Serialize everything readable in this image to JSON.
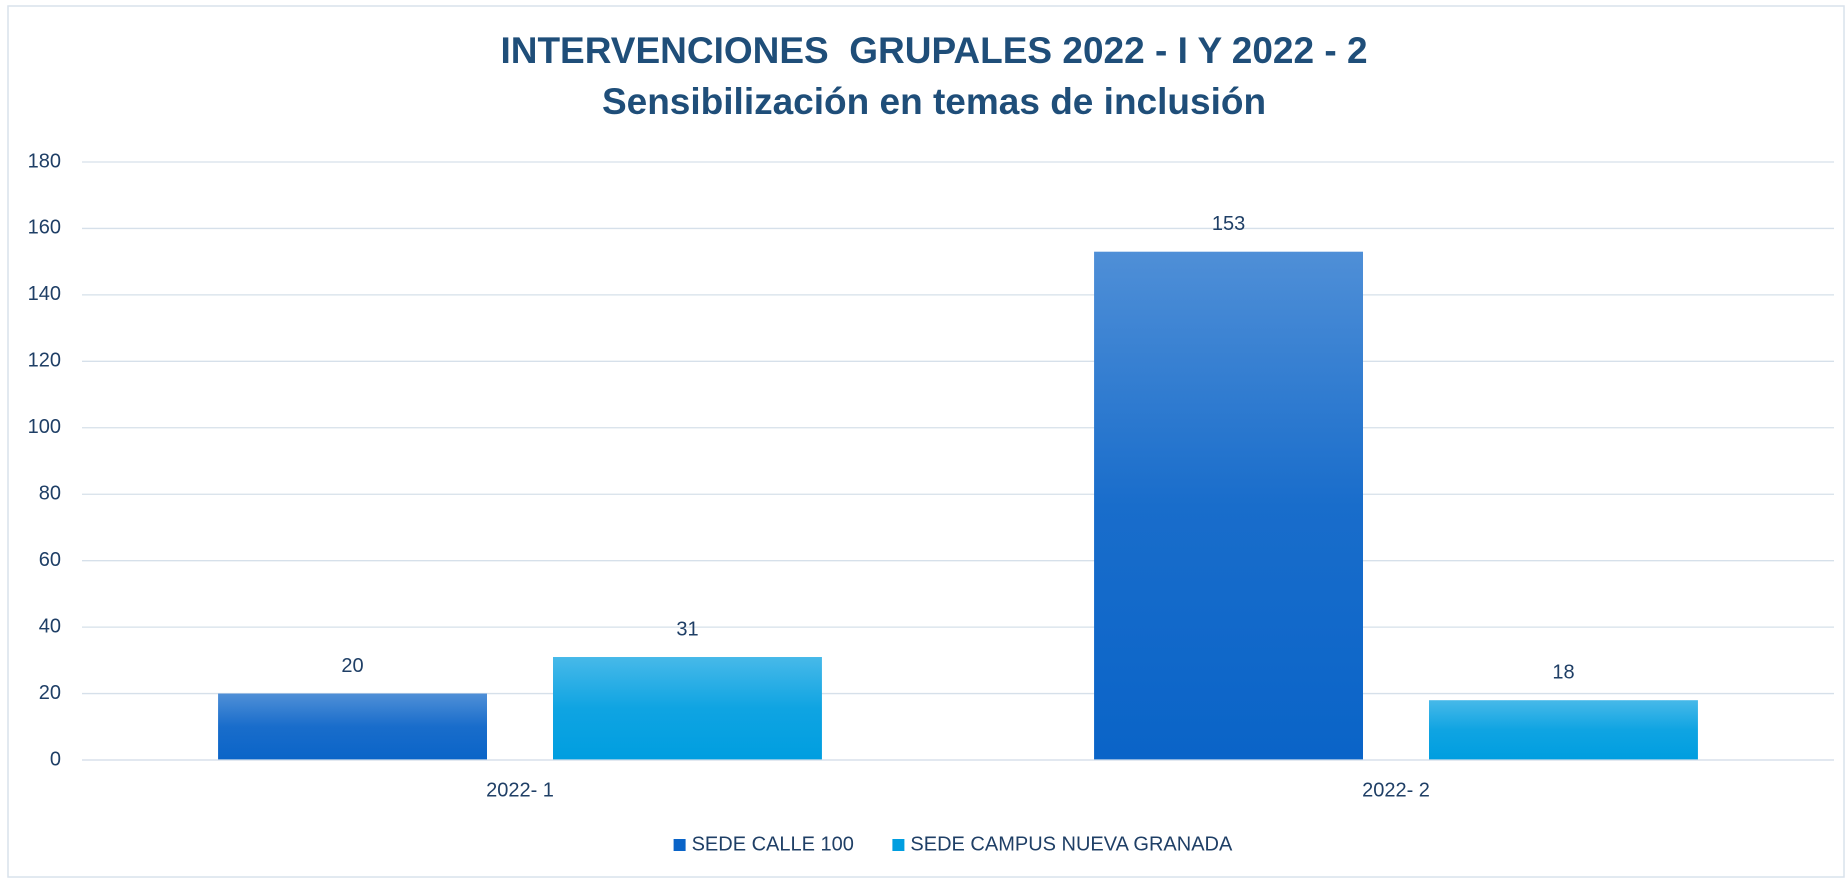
{
  "chart_data": {
    "type": "bar",
    "title": "INTERVENCIONES  GRUPALES 2022 - I Y 2022 - 2",
    "subtitle": "Sensibilización en temas de inclusión",
    "categories": [
      "2022- 1",
      "2022- 2"
    ],
    "series": [
      {
        "name": "SEDE CALLE 100",
        "color": "#0a64c8",
        "values": [
          20,
          153
        ]
      },
      {
        "name": "SEDE CAMPUS NUEVA GRANADA",
        "color": "#009ee0",
        "values": [
          31,
          18
        ]
      }
    ],
    "ylim": [
      0,
      180
    ],
    "yticks": [
      0,
      20,
      40,
      60,
      80,
      100,
      120,
      140,
      160,
      180
    ],
    "grid": true,
    "legend": "bottom"
  }
}
